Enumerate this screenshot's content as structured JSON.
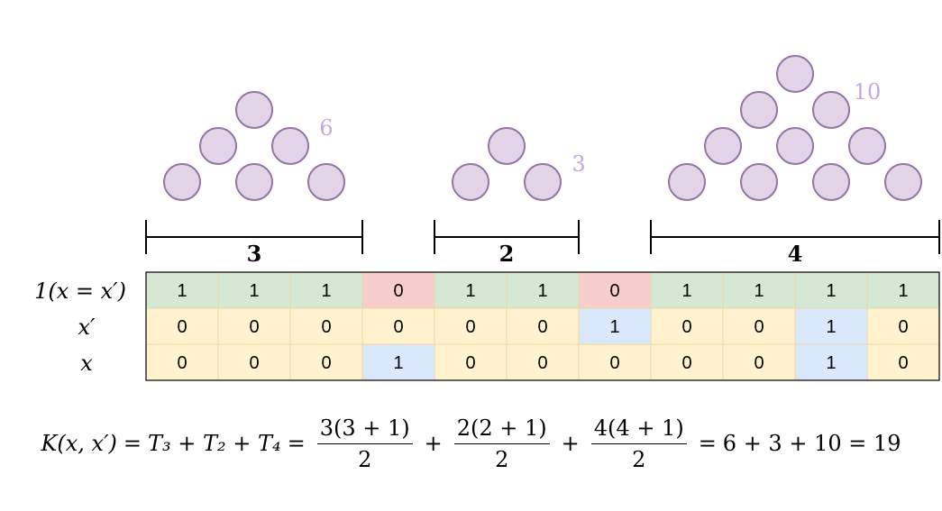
{
  "triangles": [
    {
      "rows": 3,
      "count_label": "6",
      "group_label": "3"
    },
    {
      "rows": 2,
      "count_label": "3",
      "group_label": "2"
    },
    {
      "rows": 4,
      "count_label": "10",
      "group_label": "4"
    }
  ],
  "row_labels": {
    "indicator": "1(x = x′)",
    "x_prime": "x′",
    "x": "x"
  },
  "indicator_values": [
    "1",
    "1",
    "1",
    "0",
    "1",
    "1",
    "0",
    "1",
    "1",
    "1",
    "1"
  ],
  "x_prime_values": [
    "0",
    "0",
    "0",
    "0",
    "0",
    "0",
    "1",
    "0",
    "0",
    "1",
    "0"
  ],
  "x_values": [
    "0",
    "0",
    "0",
    "1",
    "0",
    "0",
    "0",
    "0",
    "0",
    "1",
    "0"
  ],
  "highlight": {
    "x_prime_ones": [
      6,
      9
    ],
    "x_ones": [
      3,
      9
    ]
  },
  "formula": {
    "lhs": "K(x, x′)",
    "terms": "T₃ + T₂ + T₄",
    "frac1_num": "3(3 + 1)",
    "frac1_den": "2",
    "frac2_num": "2(2 + 1)",
    "frac2_den": "2",
    "frac3_num": "4(4 + 1)",
    "frac3_den": "2",
    "result": "6 + 3 + 10 = 19"
  },
  "colors": {
    "dot_fill": "#e1d5e7",
    "dot_stroke": "#9673a6",
    "count_label": "#c4a9d6",
    "match": "#d5e8d4",
    "mismatch": "#f8cecc",
    "neutral": "#fff2cc",
    "one": "#dae8fc",
    "cell_border": "#e8d9a8"
  }
}
